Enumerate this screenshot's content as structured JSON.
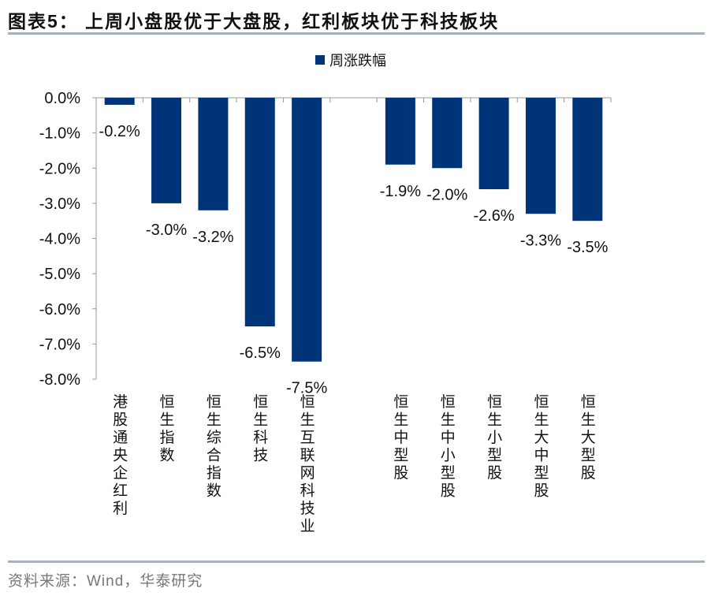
{
  "title": "图表5： 上周小盘股优于大盘股，红利板块优于科技板块",
  "source": "资料来源：Wind，华泰研究",
  "chart_data": {
    "type": "bar",
    "title": "",
    "xlabel": "",
    "ylabel": "",
    "ylim": [
      -8,
      0
    ],
    "yticks": [
      0,
      -1,
      -2,
      -3,
      -4,
      -5,
      -6,
      -7,
      -8
    ],
    "ytick_labels": [
      "0.0%",
      "-1.0%",
      "-2.0%",
      "-3.0%",
      "-4.0%",
      "-5.0%",
      "-6.0%",
      "-7.0%",
      "-8.0%"
    ],
    "grid": false,
    "legend_position": "top-center",
    "categories": [
      "港股通央企红利",
      "恒生指数",
      "恒生综合指数",
      "恒生科技",
      "恒生互联网科技业",
      "",
      "恒生中型股",
      "恒生中小型股",
      "恒生小型股",
      "恒生大中型股",
      "恒生大型股"
    ],
    "series": [
      {
        "name": "周涨跌幅",
        "color": "#003478",
        "values": [
          -0.2,
          -3.0,
          -3.2,
          -6.5,
          -7.5,
          null,
          -1.9,
          -2.0,
          -2.6,
          -3.3,
          -3.5
        ],
        "data_labels": [
          "-0.2%",
          "-3.0%",
          "-3.2%",
          "-6.5%",
          "-7.5%",
          "",
          "-1.9%",
          "-2.0%",
          "-2.6%",
          "-3.3%",
          "-3.5%"
        ]
      }
    ]
  }
}
